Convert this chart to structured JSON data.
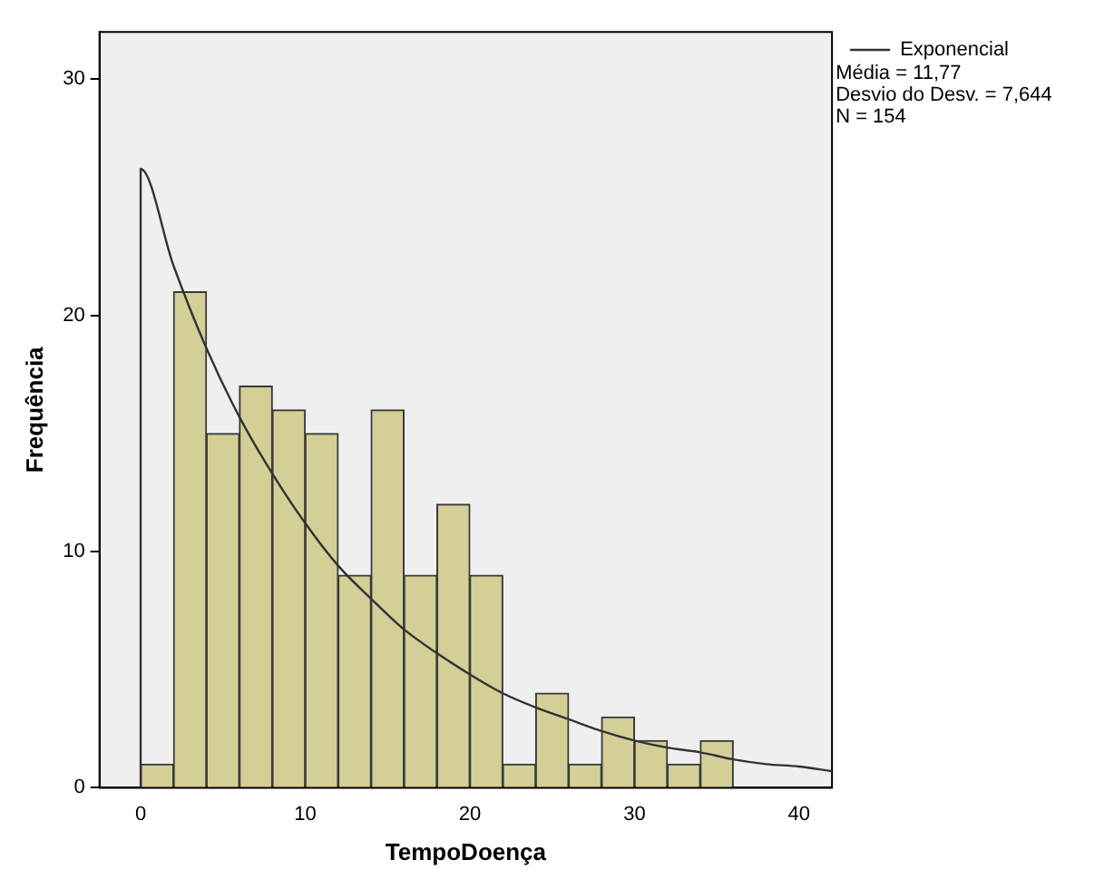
{
  "chart_data": {
    "type": "histogram",
    "xlabel": "TempoDoença",
    "ylabel": "Frequência",
    "bins": [
      0,
      2,
      4,
      6,
      8,
      10,
      12,
      14,
      16,
      18,
      20,
      22,
      24,
      26,
      28,
      30,
      32,
      34,
      36
    ],
    "values": [
      1,
      21,
      15,
      17,
      16,
      15,
      9,
      16,
      9,
      12,
      9,
      1,
      4,
      1,
      3,
      2,
      1,
      2
    ],
    "color": "#d3cf97",
    "series": [
      {
        "type": "line",
        "name": "Exponencial",
        "color": "#333333",
        "x": [
          0,
          0,
          2,
          4,
          6,
          8,
          10,
          12,
          14,
          16,
          18,
          20,
          22,
          24,
          26,
          28,
          30,
          32,
          34,
          36,
          38,
          40,
          42
        ],
        "values": [
          0,
          26.2,
          22.1,
          18.6,
          15.7,
          13.3,
          11.2,
          9.4,
          8.0,
          6.7,
          5.7,
          4.8,
          4.0,
          3.4,
          2.9,
          2.4,
          2.0,
          1.7,
          1.5,
          1.2,
          1.0,
          0.9,
          0.7
        ]
      }
    ],
    "annotations": [
      "Média = 11,77",
      "Desvio do Desv. = 7,644",
      "N = 154"
    ],
    "xlim": [
      -2.5,
      42
    ],
    "xticks": [
      0,
      10,
      20,
      30,
      40
    ],
    "ylim": [
      0,
      32
    ],
    "yticks": [
      0,
      10,
      20,
      30
    ],
    "grid": false,
    "legend": "top right",
    "marker": "none",
    "line_style": "solid"
  }
}
